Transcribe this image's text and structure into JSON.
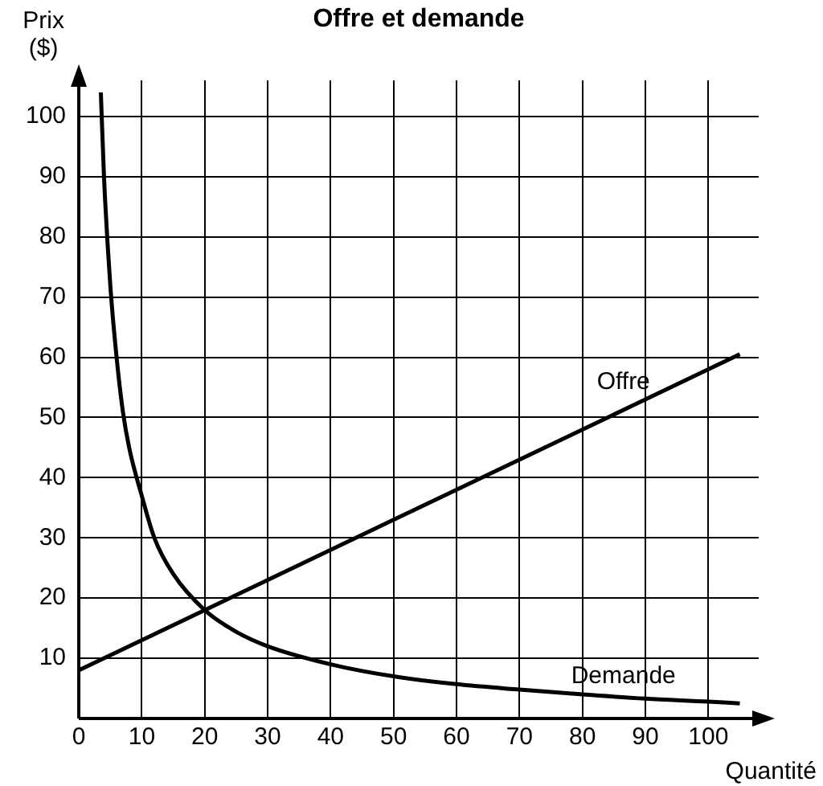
{
  "chart_data": {
    "type": "line",
    "title": "Offre et demande",
    "xlabel": "Quantité",
    "ylabel": "Prix ($)",
    "xlim": [
      0,
      108
    ],
    "ylim": [
      0,
      106
    ],
    "xticks": [
      0,
      10,
      20,
      30,
      40,
      50,
      60,
      70,
      80,
      90,
      100
    ],
    "yticks": [
      10,
      20,
      30,
      40,
      50,
      60,
      70,
      80,
      90,
      100
    ],
    "grid": true,
    "legend": false,
    "marker": "none",
    "line_style": "solid",
    "series": [
      {
        "name": "Offre",
        "color": "#000000",
        "x": [
          0,
          105
        ],
        "values": [
          8,
          60.5
        ]
      },
      {
        "name": "Demande",
        "color": "#000000",
        "x": [
          3.5,
          4,
          5,
          6,
          7,
          8,
          10,
          12,
          15,
          20,
          25,
          30,
          40,
          50,
          60,
          70,
          80,
          90,
          100,
          105
        ],
        "values": [
          104,
          90,
          72,
          60,
          51,
          45,
          37,
          30,
          24,
          18,
          14.4,
          12,
          9,
          7,
          5.7,
          4.8,
          4,
          3.3,
          2.8,
          2.5
        ]
      }
    ]
  }
}
